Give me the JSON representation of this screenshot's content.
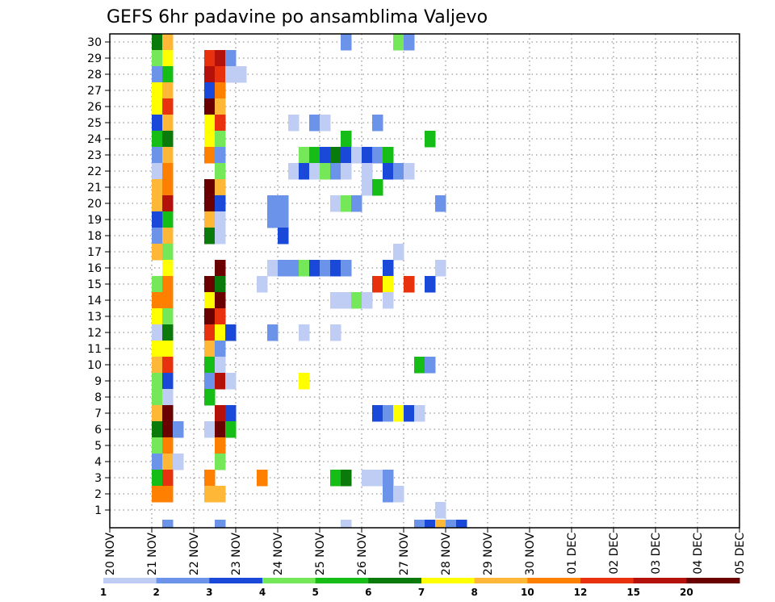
{
  "chart_data": {
    "type": "heatmap",
    "title": "GEFS 6hr padavine po ansamblima Valjevo",
    "xlabel": "",
    "ylabel": "",
    "y_members": [
      "1",
      "2",
      "3",
      "4",
      "5",
      "6",
      "7",
      "8",
      "9",
      "10",
      "11",
      "12",
      "13",
      "14",
      "15",
      "16",
      "17",
      "18",
      "19",
      "20",
      "21",
      "22",
      "23",
      "24",
      "25",
      "26",
      "27",
      "28",
      "29",
      "30"
    ],
    "x_tick_labels": [
      "20 NOV",
      "21 NOV",
      "22 NOV",
      "23 NOV",
      "24 NOV",
      "25 NOV",
      "26 NOV",
      "27 NOV",
      "28 NOV",
      "29 NOV",
      "30 NOV",
      "01 DEC",
      "02 DEC",
      "03 DEC",
      "04 DEC",
      "05 DEC"
    ],
    "x_range_days": [
      0,
      15
    ],
    "step_hours": 6,
    "grid": true,
    "legend": {
      "placement": "bottom",
      "colors": [
        "#bfcdf5",
        "#6b93e9",
        "#1a48d8",
        "#75e85a",
        "#16bd16",
        "#0a7a0a",
        "#ffff00",
        "#ffb737",
        "#ff7f00",
        "#e8320d",
        "#b5110b",
        "#6b0000"
      ],
      "labels": [
        "1",
        "2",
        "3",
        "4",
        "5",
        "6",
        "7",
        "8",
        "10",
        "12",
        "15",
        "20"
      ],
      "bounds": [
        1,
        2,
        3,
        4,
        5,
        6,
        7,
        8,
        10,
        12,
        15,
        20
      ]
    },
    "members": [
      {
        "m": 30,
        "p": [
          [
            4,
            6
          ],
          [
            5,
            8
          ],
          [
            22,
            2
          ],
          [
            27,
            4
          ],
          [
            28,
            2
          ]
        ]
      },
      {
        "m": 29,
        "p": [
          [
            4,
            4
          ],
          [
            5,
            7
          ],
          [
            9,
            10
          ],
          [
            10,
            11
          ],
          [
            11,
            2
          ]
        ]
      },
      {
        "m": 28,
        "p": [
          [
            4,
            2
          ],
          [
            5,
            5
          ],
          [
            9,
            11
          ],
          [
            10,
            10
          ],
          [
            11,
            1
          ],
          [
            12,
            1
          ]
        ]
      },
      {
        "m": 27,
        "p": [
          [
            4,
            7
          ],
          [
            5,
            8
          ],
          [
            9,
            3
          ],
          [
            10,
            9
          ]
        ]
      },
      {
        "m": 26,
        "p": [
          [
            4,
            7
          ],
          [
            5,
            10
          ],
          [
            9,
            12
          ],
          [
            10,
            8
          ]
        ]
      },
      {
        "m": 25,
        "p": [
          [
            4,
            3
          ],
          [
            5,
            8
          ],
          [
            9,
            7
          ],
          [
            10,
            10
          ],
          [
            17,
            1
          ],
          [
            19,
            2
          ],
          [
            20,
            1
          ],
          [
            25,
            2
          ]
        ]
      },
      {
        "m": 24,
        "p": [
          [
            4,
            5
          ],
          [
            5,
            6
          ],
          [
            9,
            7
          ],
          [
            10,
            4
          ],
          [
            22,
            5
          ],
          [
            30,
            5
          ]
        ]
      },
      {
        "m": 23,
        "p": [
          [
            4,
            2
          ],
          [
            5,
            8
          ],
          [
            9,
            9
          ],
          [
            10,
            2
          ],
          [
            18,
            4
          ],
          [
            19,
            5
          ],
          [
            20,
            3
          ],
          [
            21,
            6
          ],
          [
            22,
            3
          ],
          [
            23,
            1
          ],
          [
            24,
            3
          ],
          [
            25,
            2
          ],
          [
            26,
            5
          ]
        ]
      },
      {
        "m": 22,
        "p": [
          [
            4,
            1
          ],
          [
            5,
            9
          ],
          [
            10,
            4
          ],
          [
            17,
            1
          ],
          [
            18,
            3
          ],
          [
            19,
            1
          ],
          [
            20,
            4
          ],
          [
            21,
            2
          ],
          [
            22,
            1
          ],
          [
            24,
            1
          ],
          [
            26,
            3
          ],
          [
            27,
            2
          ],
          [
            28,
            1
          ]
        ]
      },
      {
        "m": 21,
        "p": [
          [
            4,
            8
          ],
          [
            5,
            9
          ],
          [
            9,
            12
          ],
          [
            10,
            8
          ],
          [
            24,
            1
          ],
          [
            25,
            5
          ]
        ]
      },
      {
        "m": 20,
        "p": [
          [
            4,
            8
          ],
          [
            5,
            11
          ],
          [
            9,
            12
          ],
          [
            10,
            3
          ],
          [
            15,
            2
          ],
          [
            16,
            2
          ],
          [
            21,
            1
          ],
          [
            22,
            4
          ],
          [
            23,
            2
          ],
          [
            31,
            2
          ]
        ]
      },
      {
        "m": 19,
        "p": [
          [
            4,
            3
          ],
          [
            5,
            5
          ],
          [
            9,
            8
          ],
          [
            10,
            1
          ],
          [
            15,
            2
          ],
          [
            16,
            2
          ]
        ]
      },
      {
        "m": 18,
        "p": [
          [
            4,
            2
          ],
          [
            5,
            8
          ],
          [
            9,
            6
          ],
          [
            10,
            1
          ],
          [
            16,
            3
          ]
        ]
      },
      {
        "m": 17,
        "p": [
          [
            4,
            8
          ],
          [
            5,
            4
          ],
          [
            27,
            1
          ]
        ]
      },
      {
        "m": 16,
        "p": [
          [
            5,
            7
          ],
          [
            10,
            12
          ],
          [
            15,
            1
          ],
          [
            16,
            2
          ],
          [
            17,
            2
          ],
          [
            18,
            4
          ],
          [
            19,
            3
          ],
          [
            20,
            2
          ],
          [
            21,
            3
          ],
          [
            22,
            2
          ],
          [
            26,
            3
          ],
          [
            31,
            1
          ]
        ]
      },
      {
        "m": 15,
        "p": [
          [
            4,
            4
          ],
          [
            5,
            9
          ],
          [
            9,
            12
          ],
          [
            10,
            6
          ],
          [
            14,
            1
          ],
          [
            25,
            10
          ],
          [
            26,
            7
          ],
          [
            28,
            10
          ],
          [
            30,
            3
          ]
        ]
      },
      {
        "m": 14,
        "p": [
          [
            4,
            9
          ],
          [
            5,
            9
          ],
          [
            9,
            7
          ],
          [
            10,
            12
          ],
          [
            21,
            1
          ],
          [
            22,
            1
          ],
          [
            23,
            4
          ],
          [
            24,
            1
          ],
          [
            26,
            1
          ]
        ]
      },
      {
        "m": 13,
        "p": [
          [
            4,
            7
          ],
          [
            5,
            4
          ],
          [
            9,
            12
          ],
          [
            10,
            10
          ]
        ]
      },
      {
        "m": 12,
        "p": [
          [
            4,
            1
          ],
          [
            5,
            6
          ],
          [
            9,
            10
          ],
          [
            10,
            7
          ],
          [
            11,
            3
          ],
          [
            15,
            2
          ],
          [
            18,
            1
          ],
          [
            21,
            1
          ]
        ]
      },
      {
        "m": 11,
        "p": [
          [
            4,
            7
          ],
          [
            5,
            7
          ],
          [
            9,
            8
          ],
          [
            10,
            2
          ]
        ]
      },
      {
        "m": 10,
        "p": [
          [
            4,
            8
          ],
          [
            5,
            10
          ],
          [
            9,
            5
          ],
          [
            10,
            1
          ],
          [
            29,
            5
          ],
          [
            30,
            2
          ]
        ]
      },
      {
        "m": 9,
        "p": [
          [
            4,
            4
          ],
          [
            5,
            3
          ],
          [
            9,
            2
          ],
          [
            10,
            11
          ],
          [
            11,
            1
          ],
          [
            18,
            7
          ]
        ]
      },
      {
        "m": 8,
        "p": [
          [
            4,
            4
          ],
          [
            5,
            1
          ],
          [
            9,
            5
          ]
        ]
      },
      {
        "m": 7,
        "p": [
          [
            4,
            8
          ],
          [
            5,
            12
          ],
          [
            10,
            11
          ],
          [
            11,
            3
          ],
          [
            25,
            3
          ],
          [
            26,
            2
          ],
          [
            27,
            7
          ],
          [
            28,
            3
          ],
          [
            29,
            1
          ]
        ]
      },
      {
        "m": 6,
        "p": [
          [
            4,
            6
          ],
          [
            5,
            12
          ],
          [
            6,
            2
          ],
          [
            9,
            1
          ],
          [
            10,
            12
          ],
          [
            11,
            5
          ]
        ]
      },
      {
        "m": 5,
        "p": [
          [
            4,
            4
          ],
          [
            5,
            9
          ],
          [
            10,
            9
          ]
        ]
      },
      {
        "m": 4,
        "p": [
          [
            4,
            2
          ],
          [
            5,
            8
          ],
          [
            6,
            1
          ],
          [
            10,
            4
          ]
        ]
      },
      {
        "m": 3,
        "p": [
          [
            4,
            5
          ],
          [
            5,
            10
          ],
          [
            9,
            9
          ],
          [
            14,
            9
          ],
          [
            21,
            5
          ],
          [
            22,
            6
          ],
          [
            24,
            1
          ],
          [
            25,
            1
          ],
          [
            26,
            2
          ]
        ]
      },
      {
        "m": 2,
        "p": [
          [
            4,
            9
          ],
          [
            5,
            9
          ],
          [
            9,
            8
          ],
          [
            10,
            8
          ],
          [
            26,
            2
          ],
          [
            27,
            1
          ]
        ]
      },
      {
        "m": 1,
        "p": [
          [
            31,
            1
          ]
        ]
      }
    ],
    "bottom_row": [
      [
        5,
        2
      ],
      [
        10,
        2
      ],
      [
        22,
        1
      ],
      [
        29,
        2
      ],
      [
        30,
        3
      ],
      [
        31,
        8
      ],
      [
        32,
        2
      ],
      [
        33,
        3
      ]
    ]
  }
}
